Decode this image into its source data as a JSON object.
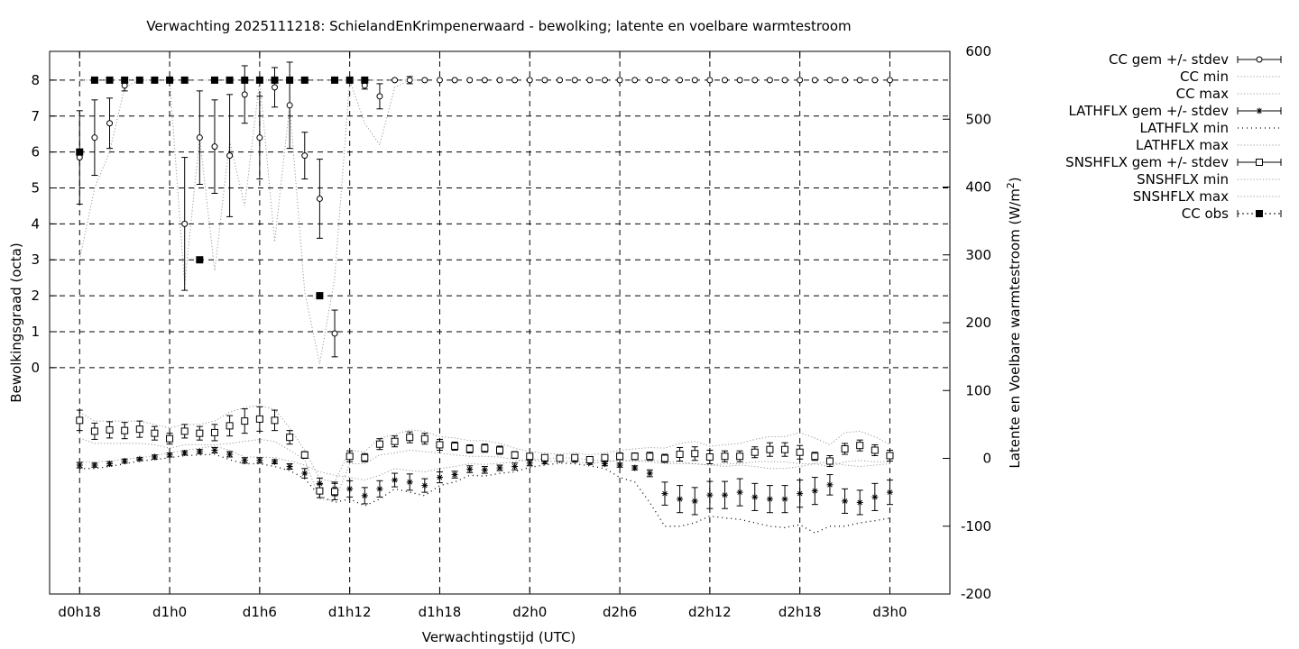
{
  "chart_data": {
    "type": "line",
    "title": "Verwachting 2025111218: SchielandEnKrimpenerwaard - bewolking; latente en voelbare warmtestroom",
    "xlabel": "Verwachtingstijd (UTC)",
    "ylabel_left": "Bewolkingsgraad (octa)",
    "ylabel_right_main": "Latente en Voelbare warmtestroom (W/m",
    "ylabel_right_sup": "2",
    "ylabel_right_end": ")",
    "x_unit": "hours since analysis 2025111218",
    "xlim": [
      -2,
      58
    ],
    "ylim_left_octa": [
      -6.3,
      8.8
    ],
    "ylim_right_wm2": [
      -200,
      600
    ],
    "x_ticks": [
      {
        "x": 0,
        "label": "d0h18"
      },
      {
        "x": 6,
        "label": "d1h0"
      },
      {
        "x": 12,
        "label": "d1h6"
      },
      {
        "x": 18,
        "label": "d1h12"
      },
      {
        "x": 24,
        "label": "d1h18"
      },
      {
        "x": 30,
        "label": "d2h0"
      },
      {
        "x": 36,
        "label": "d2h6"
      },
      {
        "x": 42,
        "label": "d2h12"
      },
      {
        "x": 48,
        "label": "d2h18"
      },
      {
        "x": 54,
        "label": "d3h0"
      }
    ],
    "y_ticks_left": [
      0,
      1,
      2,
      3,
      4,
      5,
      6,
      7,
      8
    ],
    "y_ticks_right": [
      -200,
      -100,
      0,
      100,
      200,
      300,
      400,
      500,
      600
    ],
    "grid": true,
    "legend_position": "outside-right",
    "legend": [
      {
        "label": "CC gem +/- stdev"
      },
      {
        "label": "CC min"
      },
      {
        "label": "CC max"
      },
      {
        "label": "LATHFLX gem +/- stdev"
      },
      {
        "label": "LATHFLX min"
      },
      {
        "label": "LATHFLX max"
      },
      {
        "label": "SNSHFLX gem +/- stdev"
      },
      {
        "label": "SNSHFLX min"
      },
      {
        "label": "SNSHFLX max"
      },
      {
        "label": "CC obs"
      }
    ],
    "cc_gem": {
      "x": [
        0,
        1,
        2,
        3,
        4,
        5,
        6,
        7,
        8,
        9,
        10,
        11,
        12,
        13,
        14,
        15,
        16,
        17,
        18,
        19,
        20,
        21,
        22,
        23,
        24,
        25,
        26,
        27,
        28,
        29,
        30,
        31,
        32,
        33,
        34,
        35,
        36,
        37,
        38,
        39,
        40,
        41,
        42,
        43,
        44,
        45,
        46,
        47,
        48,
        49,
        50,
        51,
        52,
        53,
        54
      ],
      "y": [
        5.85,
        6.4,
        6.8,
        7.85,
        8,
        8,
        8,
        8,
        6.4,
        6.15,
        5.9,
        7.6,
        6.4,
        7.8,
        7.3,
        5.9,
        4.7,
        0.95,
        8,
        7.85,
        7.55,
        8,
        8,
        8,
        8,
        8,
        8,
        8,
        8,
        8,
        8,
        8,
        8,
        8,
        8,
        8,
        8,
        8,
        8,
        8,
        8,
        8,
        8,
        8,
        8,
        8,
        8,
        8,
        8,
        8,
        8,
        8,
        8,
        8,
        8
      ],
      "sd": [
        1.3,
        1.05,
        0.7,
        0.15,
        0,
        0,
        0,
        0,
        1.3,
        1.3,
        1.7,
        0.8,
        1.15,
        0.55,
        1.2,
        0.65,
        1.1,
        0.65,
        0,
        0.1,
        0.35,
        0,
        0.1,
        0,
        0,
        0,
        0,
        0,
        0,
        0,
        0,
        0,
        0,
        0,
        0,
        0,
        0,
        0,
        0,
        0,
        0,
        0,
        0,
        0,
        0,
        0,
        0,
        0,
        0,
        0,
        0,
        0,
        0,
        0,
        0
      ]
    },
    "cc_gem_outlier": {
      "x": 7,
      "y": 4.0,
      "sd": 1.85
    },
    "cc_min": {
      "x": [
        0,
        1,
        2,
        3,
        4,
        5,
        6,
        7,
        8,
        9,
        10,
        11,
        12,
        13,
        14,
        15,
        16,
        17,
        18,
        19,
        20,
        21,
        22
      ],
      "y": [
        3,
        5,
        6,
        7.8,
        8,
        8,
        8,
        2.3,
        6.4,
        2.7,
        6.3,
        4.5,
        8,
        3.5,
        7.3,
        2.1,
        0.1,
        2.5,
        8,
        6.8,
        6.2,
        7.8,
        8
      ]
    },
    "cc_max": {
      "x": [
        0,
        1,
        2,
        3,
        4,
        5,
        6,
        7,
        8,
        9,
        10,
        11,
        12,
        13,
        14,
        15,
        16,
        17,
        18,
        19,
        20,
        21,
        22,
        23
      ],
      "y": [
        8,
        8,
        8,
        8,
        8,
        8,
        8,
        8,
        8,
        8,
        8,
        8,
        8,
        8,
        8,
        8,
        8,
        8,
        8,
        8,
        8,
        8,
        8,
        8
      ]
    },
    "cc_obs": {
      "x": [
        0,
        1,
        2,
        3,
        4,
        5,
        6,
        7,
        8,
        9,
        10,
        11,
        12,
        13,
        14,
        15,
        16,
        17,
        18,
        19
      ],
      "y": [
        6,
        8,
        8,
        8,
        8,
        8,
        8,
        8,
        3,
        8,
        8,
        8,
        8,
        8,
        8,
        8,
        2,
        8,
        8,
        8
      ]
    },
    "lathflx_gem": {
      "x": [
        0,
        1,
        2,
        3,
        4,
        5,
        6,
        7,
        8,
        9,
        10,
        11,
        12,
        13,
        14,
        15,
        16,
        17,
        18,
        19,
        20,
        21,
        22,
        23,
        24,
        25,
        26,
        27,
        28,
        29,
        30,
        31,
        32,
        33,
        34,
        35,
        36,
        37,
        38,
        39,
        40,
        41,
        42,
        43,
        44,
        45,
        46,
        47,
        48,
        49,
        50,
        51,
        52,
        53,
        54
      ],
      "y": [
        -10,
        -10,
        -8,
        -4,
        -1,
        2,
        5,
        8,
        10,
        12,
        6,
        -3,
        -3,
        -5,
        -12,
        -22,
        -37,
        -45,
        -45,
        -55,
        -45,
        -32,
        -35,
        -40,
        -28,
        -24,
        -16,
        -17,
        -14,
        -12,
        -7,
        -5,
        -2,
        -3,
        -6,
        -8,
        -10,
        -14,
        -22,
        -52,
        -60,
        -63,
        -54,
        -54,
        -50,
        -57,
        -60,
        -60,
        -52,
        -48,
        -39,
        -63,
        -65,
        -57,
        -50
      ],
      "sd": [
        4,
        3,
        3,
        3,
        2,
        3,
        3,
        3,
        3,
        4,
        4,
        4,
        4,
        3,
        4,
        7,
        8,
        10,
        12,
        12,
        12,
        10,
        12,
        10,
        8,
        5,
        5,
        5,
        4,
        5,
        4,
        3,
        2,
        2,
        3,
        3,
        3,
        3,
        5,
        17,
        20,
        20,
        20,
        20,
        20,
        20,
        20,
        20,
        20,
        20,
        15,
        18,
        18,
        20,
        18
      ]
    },
    "lathflx_min": {
      "x": [
        0,
        1,
        2,
        3,
        4,
        5,
        6,
        7,
        8,
        9,
        10,
        11,
        12,
        13,
        14,
        15,
        16,
        17,
        18,
        19,
        20,
        21,
        22,
        23,
        24,
        25,
        26,
        27,
        28,
        29,
        30,
        31,
        32,
        33,
        34,
        35,
        36,
        37,
        38,
        39,
        40,
        41,
        42,
        43,
        44,
        45,
        46,
        47,
        48,
        49,
        50,
        51,
        52,
        53,
        54
      ],
      "y": [
        -15,
        -15,
        -12,
        -8,
        -4,
        -2,
        1,
        4,
        5,
        6,
        -2,
        -8,
        -8,
        -12,
        -18,
        -30,
        -55,
        -65,
        -60,
        -70,
        -60,
        -45,
        -50,
        -55,
        -40,
        -35,
        -25,
        -26,
        -22,
        -20,
        -13,
        -10,
        -7,
        -8,
        -11,
        -15,
        -28,
        -35,
        -65,
        -100,
        -100,
        -95,
        -85,
        -88,
        -90,
        -95,
        -100,
        -102,
        -98,
        -110,
        -100,
        -100,
        -95,
        -92,
        -88
      ]
    },
    "lathflx_max": {
      "x": [
        0,
        1,
        2,
        3,
        4,
        5,
        6,
        7,
        8,
        9,
        10,
        11,
        12,
        13,
        14,
        15,
        16,
        17,
        18,
        19,
        20,
        21,
        22,
        23,
        24,
        25,
        26,
        27,
        28,
        29,
        30,
        31,
        32,
        33,
        34,
        35,
        36,
        37,
        38,
        39,
        40,
        41,
        42,
        43,
        44,
        45,
        46,
        47,
        48,
        49,
        50,
        51,
        52,
        53,
        54
      ],
      "y": [
        -5,
        -5,
        -4,
        -1,
        1,
        4,
        8,
        12,
        15,
        18,
        12,
        2,
        2,
        1,
        -4,
        -10,
        -20,
        -25,
        -28,
        -32,
        -25,
        -15,
        -18,
        -20,
        -15,
        -12,
        -8,
        -9,
        -7,
        -5,
        -2,
        -1,
        1,
        0,
        -2,
        -4,
        -3,
        -4,
        -2,
        -5,
        -5,
        -8,
        -10,
        -12,
        -10,
        -12,
        -15,
        -15,
        -12,
        -8,
        -5,
        -10,
        -12,
        -10,
        -8
      ]
    },
    "snshflx_gem": {
      "x": [
        0,
        1,
        2,
        3,
        4,
        5,
        6,
        7,
        8,
        9,
        10,
        11,
        12,
        13,
        14,
        15,
        16,
        17,
        18,
        19,
        20,
        21,
        22,
        23,
        24,
        25,
        26,
        27,
        28,
        29,
        30,
        31,
        32,
        33,
        34,
        35,
        36,
        37,
        38,
        39,
        40,
        41,
        42,
        43,
        44,
        45,
        46,
        47,
        48,
        49,
        50,
        51,
        52,
        53,
        54
      ],
      "y": [
        56,
        40,
        42,
        41,
        43,
        37,
        29,
        40,
        37,
        38,
        48,
        55,
        58,
        56,
        31,
        5,
        -48,
        -49,
        3,
        1,
        21,
        25,
        31,
        29,
        20,
        18,
        14,
        15,
        12,
        5,
        3,
        1,
        0,
        1,
        -2,
        1,
        3,
        3,
        3,
        0,
        6,
        7,
        2,
        3,
        3,
        9,
        13,
        13,
        9,
        3,
        -4,
        14,
        19,
        12,
        4
      ],
      "sd": [
        15,
        12,
        12,
        12,
        12,
        10,
        8,
        10,
        10,
        12,
        15,
        18,
        18,
        15,
        10,
        5,
        10,
        12,
        8,
        6,
        8,
        8,
        8,
        8,
        8,
        6,
        6,
        6,
        6,
        5,
        4,
        3,
        3,
        3,
        4,
        4,
        5,
        5,
        6,
        6,
        10,
        10,
        10,
        8,
        8,
        8,
        10,
        10,
        10,
        6,
        8,
        8,
        8,
        8,
        8
      ]
    },
    "snshflx_min": {
      "x": [
        0,
        1,
        2,
        3,
        4,
        5,
        6,
        7,
        8,
        9,
        10,
        11,
        12,
        13,
        14,
        15,
        16,
        17,
        18,
        19,
        20,
        21,
        22,
        23,
        24,
        25,
        26,
        27,
        28,
        29,
        30,
        31,
        32,
        33,
        34,
        35,
        36,
        37,
        38,
        39,
        40,
        41,
        42,
        43,
        44,
        45,
        46,
        47,
        48,
        49,
        50,
        51,
        52,
        53,
        54
      ],
      "y": [
        30,
        22,
        22,
        22,
        22,
        20,
        15,
        20,
        20,
        20,
        22,
        25,
        28,
        25,
        12,
        -2,
        -60,
        -62,
        -8,
        -8,
        5,
        8,
        12,
        10,
        8,
        5,
        3,
        3,
        2,
        -2,
        -3,
        -4,
        -5,
        -4,
        -8,
        -5,
        -3,
        -4,
        -5,
        -8,
        -8,
        -8,
        -10,
        -8,
        -8,
        -5,
        -5,
        -5,
        -8,
        -8,
        -12,
        -5,
        -3,
        -5,
        -5
      ]
    },
    "snshflx_max": {
      "x": [
        0,
        1,
        2,
        3,
        4,
        5,
        6,
        7,
        8,
        9,
        10,
        11,
        12,
        13,
        14,
        15,
        16,
        17,
        18,
        19,
        20,
        21,
        22,
        23,
        24,
        25,
        26,
        27,
        28,
        29,
        30,
        31,
        32,
        33,
        34,
        35,
        36,
        37,
        38,
        39,
        40,
        41,
        42,
        43,
        44,
        45,
        46,
        47,
        48,
        49,
        50,
        51,
        52,
        53,
        54
      ],
      "y": [
        68,
        55,
        55,
        55,
        55,
        50,
        45,
        50,
        50,
        55,
        68,
        75,
        78,
        72,
        45,
        12,
        -30,
        -35,
        12,
        10,
        30,
        35,
        42,
        40,
        32,
        30,
        26,
        26,
        22,
        15,
        10,
        8,
        6,
        8,
        5,
        8,
        12,
        14,
        16,
        15,
        22,
        25,
        18,
        20,
        22,
        28,
        32,
        32,
        38,
        30,
        20,
        38,
        40,
        32,
        20
      ]
    }
  }
}
